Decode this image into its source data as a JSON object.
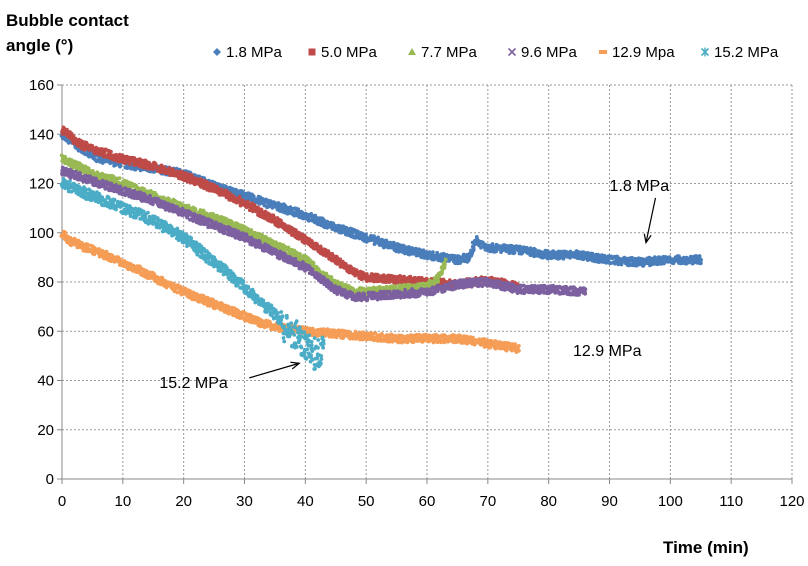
{
  "chart_data": {
    "type": "scatter",
    "ylabel_line1": "Bubble contact",
    "ylabel_line2": "angle (°)",
    "xlabel": "Time  (min)",
    "xlim": [
      0,
      120
    ],
    "ylim": [
      0,
      160
    ],
    "xticks": [
      "0",
      "10",
      "20",
      "30",
      "40",
      "50",
      "60",
      "70",
      "80",
      "90",
      "100",
      "110",
      "120"
    ],
    "yticks": [
      "0",
      "20",
      "40",
      "60",
      "80",
      "100",
      "120",
      "140",
      "160"
    ],
    "grid": true,
    "legend_position": "top",
    "series": [
      {
        "name": "1.8 MPa",
        "color": "#4A7EBB",
        "marker": "diamond",
        "x": [
          0,
          5,
          10,
          15,
          20,
          25,
          30,
          35,
          40,
          45,
          50,
          55,
          60,
          65,
          67,
          68,
          70,
          75,
          80,
          85,
          90,
          95,
          100,
          105
        ],
        "y": [
          140,
          131,
          128,
          126,
          124,
          119,
          115,
          111,
          107,
          102,
          98,
          94,
          91,
          89,
          90,
          97,
          94,
          93,
          91,
          91,
          89,
          88,
          89,
          89
        ]
      },
      {
        "name": "5.0 MPa",
        "color": "#BE4B48",
        "marker": "square",
        "x": [
          0,
          3,
          5,
          10,
          15,
          20,
          25,
          30,
          35,
          40,
          45,
          48,
          50,
          55,
          60,
          65,
          70,
          75
        ],
        "y": [
          142,
          136,
          134,
          130,
          127,
          123,
          118,
          112,
          105,
          97,
          89,
          84,
          82,
          81,
          80,
          79,
          81,
          78
        ]
      },
      {
        "name": "7.7 MPa",
        "color": "#98B954",
        "marker": "triangle",
        "x": [
          0,
          5,
          10,
          15,
          20,
          25,
          30,
          35,
          40,
          45,
          48,
          50,
          55,
          60,
          62,
          63
        ],
        "y": [
          130,
          124,
          120,
          115,
          110,
          106,
          101,
          95,
          89,
          79,
          76,
          76,
          77,
          78,
          82,
          88
        ]
      },
      {
        "name": "9.6 MPa",
        "color": "#7D60A0",
        "marker": "x",
        "x": [
          0,
          5,
          10,
          15,
          20,
          25,
          30,
          35,
          40,
          45,
          48,
          50,
          55,
          60,
          65,
          70,
          75,
          80,
          86
        ],
        "y": [
          125,
          121,
          117,
          113,
          108,
          103,
          98,
          92,
          86,
          77,
          74,
          74,
          75,
          76,
          79,
          80,
          77,
          77,
          76
        ]
      },
      {
        "name": "12.9 Mpa",
        "color": "#F59D56",
        "marker": "dash",
        "x": [
          0,
          1,
          5,
          10,
          15,
          20,
          25,
          30,
          33,
          37,
          40,
          45,
          50,
          55,
          60,
          65,
          70,
          75
        ],
        "y": [
          100,
          97,
          93,
          88,
          82,
          76,
          71,
          66,
          63,
          61,
          60,
          59,
          58,
          57,
          57,
          57,
          55,
          53
        ]
      },
      {
        "name": "15.2 MPa",
        "color": "#4BACC6",
        "marker": "star",
        "x": [
          0,
          5,
          10,
          15,
          20,
          25,
          30,
          33,
          35,
          37,
          39,
          40,
          41,
          42,
          43
        ],
        "y": [
          120,
          115,
          110,
          105,
          98,
          88,
          78,
          71,
          67,
          61,
          57,
          54,
          52,
          50,
          55
        ]
      }
    ],
    "annotations": [
      {
        "text": "1.8 MPa",
        "x": 96,
        "y": 96,
        "text_x": 90,
        "text_y": 117
      },
      {
        "text": "12.9 MPa",
        "x": null,
        "y": null,
        "text_x": 84,
        "text_y": 50
      },
      {
        "text": "15.2 MPa",
        "x": 39,
        "y": 47,
        "text_x": 16,
        "text_y": 37
      }
    ]
  }
}
